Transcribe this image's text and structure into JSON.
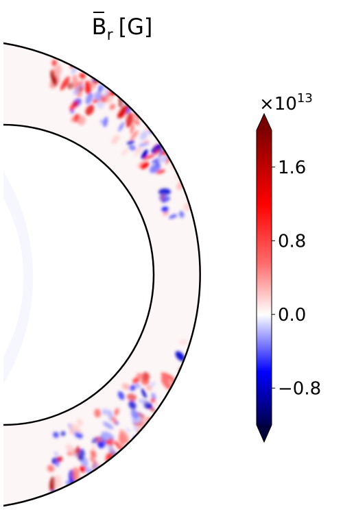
{
  "chart_data": {
    "type": "heatmap",
    "title": {
      "symbol": "B",
      "subscript": "r",
      "unit": "[G]"
    },
    "geometry": "meridional half-annulus (spherical shell slice)",
    "colormap": "seismic",
    "colorbar": {
      "multiplier_base": "×10",
      "multiplier_exponent": "13",
      "vmin": -1.2,
      "vmax": 2.0,
      "ticks": [
        1.6,
        0.8,
        0.0,
        -0.8
      ],
      "tick_labels": [
        "1.6",
        "0.8",
        "0.0",
        "−0.8"
      ],
      "extend": "both"
    },
    "features": [
      {
        "region": "near-surface, upper latitudes",
        "sign": "positive and negative mixed",
        "peak": 2.0
      },
      {
        "region": "near-surface, lower latitudes",
        "sign": "positive and negative mixed",
        "peak": 1.2
      },
      {
        "region": "interior of shell",
        "sign": "near zero",
        "peak": 0.05
      }
    ]
  }
}
